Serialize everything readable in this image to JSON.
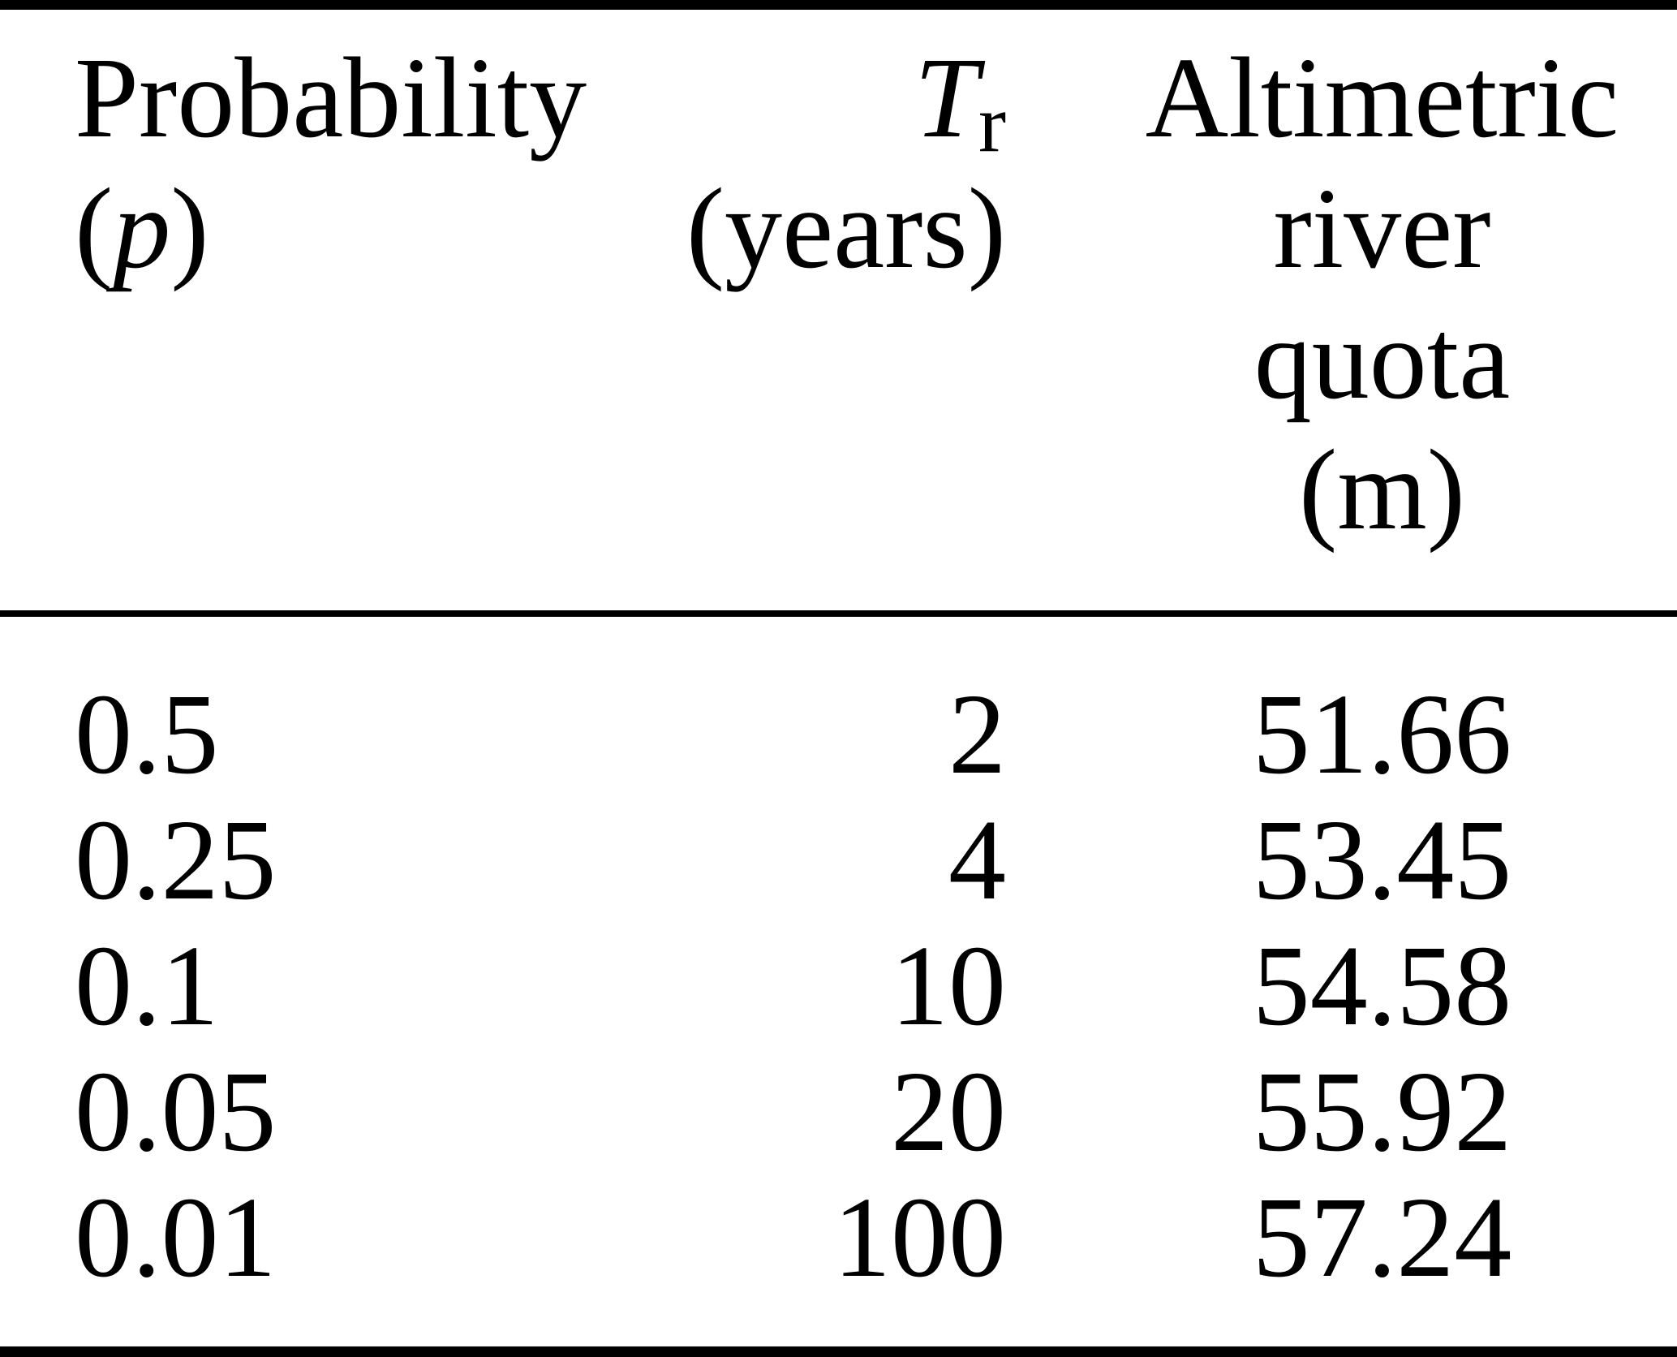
{
  "table": {
    "header": {
      "col1": {
        "title": "Probability",
        "paren_open": "(",
        "symbol": "p",
        "paren_close": ")"
      },
      "col2": {
        "symbol": "T",
        "subscript": "r",
        "unit": "(years)"
      },
      "col3": {
        "lines": [
          "Altimetric",
          "river",
          "quota",
          "(m)"
        ]
      }
    },
    "rows": [
      {
        "p": "0.5",
        "tr": "2",
        "quota": "51.66"
      },
      {
        "p": "0.25",
        "tr": "4",
        "quota": "53.45"
      },
      {
        "p": "0.1",
        "tr": "10",
        "quota": "54.58"
      },
      {
        "p": "0.05",
        "tr": "20",
        "quota": "55.92"
      },
      {
        "p": "0.01",
        "tr": "100",
        "quota": "57.24"
      }
    ],
    "colors": {
      "text": "#000000",
      "background": "#ffffff",
      "rule": "#000000"
    }
  }
}
